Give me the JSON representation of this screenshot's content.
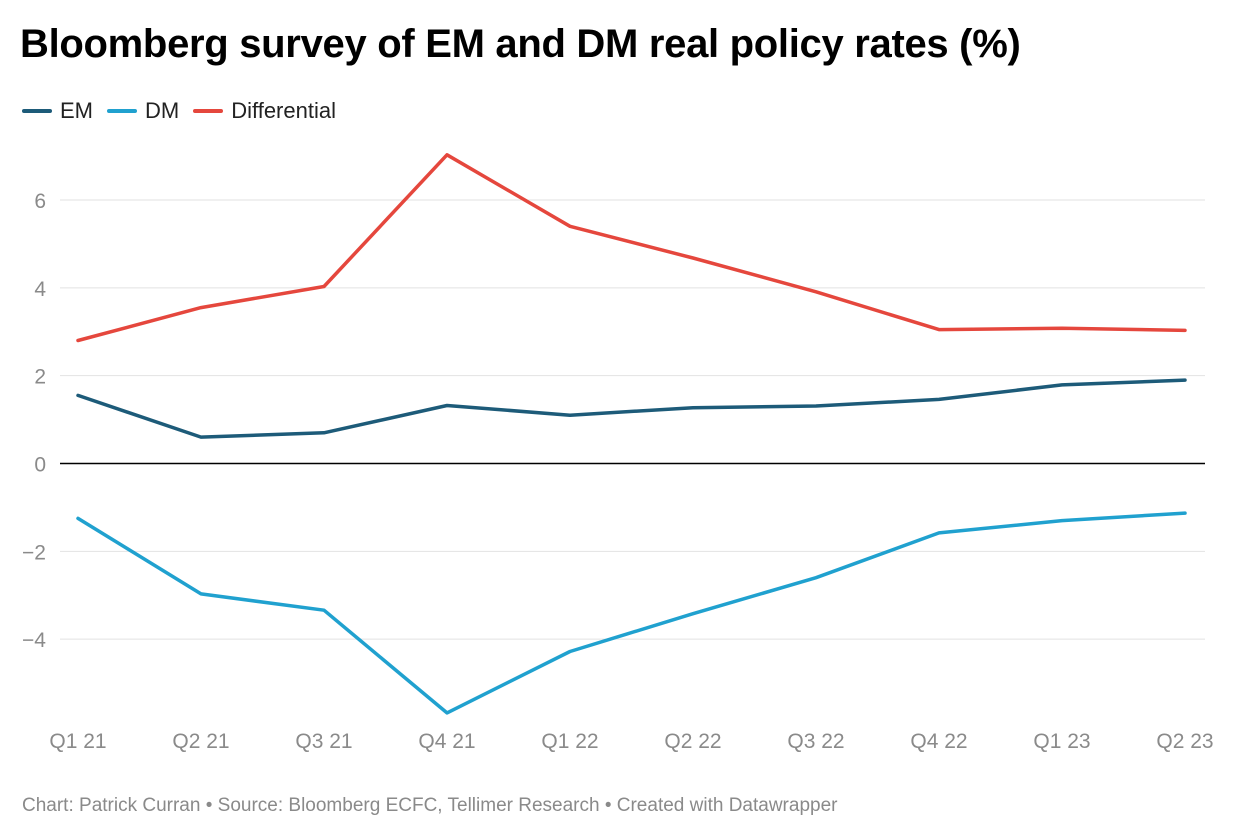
{
  "title": "Bloomberg survey of EM and DM real policy rates (%)",
  "footer": "Chart: Patrick Curran • Source: Bloomberg ECFC, Tellimer Research • Created with Datawrapper",
  "chart_data": {
    "type": "line",
    "title": "Bloomberg survey of EM and DM real policy rates (%)",
    "categories": [
      "Q1 21",
      "Q2 21",
      "Q3 21",
      "Q4 21",
      "Q1 22",
      "Q2 22",
      "Q3 22",
      "Q4 22",
      "Q1 23",
      "Q2 23"
    ],
    "yticks": [
      6,
      4,
      2,
      0,
      -2,
      -4
    ],
    "ytick_labels": [
      "6",
      "4",
      "2",
      "0",
      "−2",
      "−4"
    ],
    "ylim": [
      -5.9,
      7.3
    ],
    "grid": true,
    "legend_position": "top-left",
    "series": [
      {
        "name": "EM",
        "color": "#1d5b79",
        "values": [
          1.55,
          0.6,
          0.7,
          1.32,
          1.1,
          1.27,
          1.31,
          1.46,
          1.79,
          1.9
        ]
      },
      {
        "name": "DM",
        "color": "#20a1cf",
        "values": [
          -1.25,
          -2.97,
          -3.34,
          -5.68,
          -4.28,
          -3.42,
          -2.6,
          -1.58,
          -1.3,
          -1.13
        ]
      },
      {
        "name": "Differential",
        "color": "#e5473d",
        "values": [
          2.8,
          3.55,
          4.03,
          7.03,
          5.4,
          4.68,
          3.91,
          3.05,
          3.08,
          3.03
        ]
      }
    ]
  }
}
